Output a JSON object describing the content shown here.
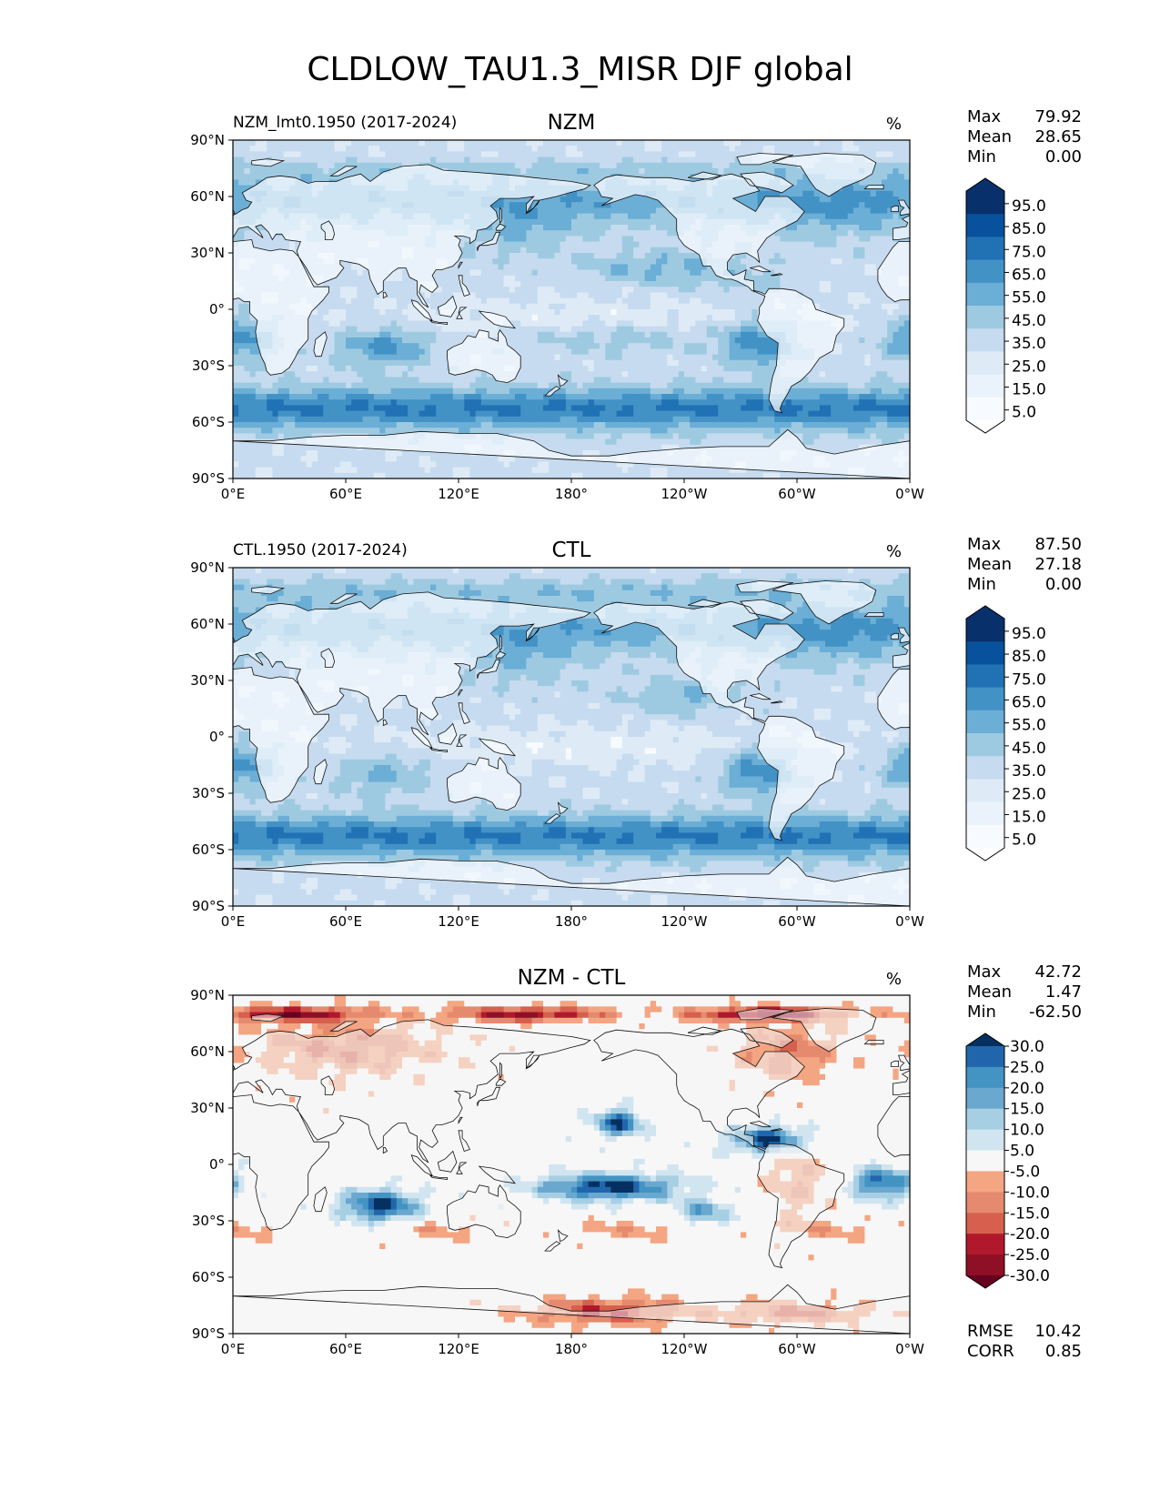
{
  "title": "CLDLOW_TAU1.3_MISR DJF global",
  "colors": {
    "seq_palette": [
      "#f7fbff",
      "#deebf7",
      "#c6dbef",
      "#9ecae1",
      "#6baed6",
      "#4292c6",
      "#2171b5",
      "#08519c",
      "#08306b"
    ],
    "div_palette": [
      "#67001f",
      "#b2182b",
      "#d6604d",
      "#f4a582",
      "#fddbc7",
      "#f7f7f7",
      "#d1e5f0",
      "#92c5de",
      "#4393c3",
      "#2166ac",
      "#053061"
    ],
    "coast": "#111111",
    "land_light": "#f5f5f5"
  },
  "panels": [
    {
      "id": "nzm",
      "left_label": "NZM_lmt0.1950 (2017-2024)",
      "center_label": "NZM",
      "units": "%",
      "stats": [
        {
          "label": "Max",
          "value": "79.92"
        },
        {
          "label": "Mean",
          "value": "28.65"
        },
        {
          "label": "Min",
          "value": "0.00"
        }
      ],
      "colorbar": {
        "type": "sequential",
        "ticks": [
          "95.0",
          "85.0",
          "75.0",
          "65.0",
          "55.0",
          "45.0",
          "35.0",
          "25.0",
          "15.0",
          "5.0"
        ]
      }
    },
    {
      "id": "ctl",
      "left_label": "CTL.1950 (2017-2024)",
      "center_label": "CTL",
      "units": "%",
      "stats": [
        {
          "label": "Max",
          "value": "87.50"
        },
        {
          "label": "Mean",
          "value": "27.18"
        },
        {
          "label": "Min",
          "value": "0.00"
        }
      ],
      "colorbar": {
        "type": "sequential",
        "ticks": [
          "95.0",
          "85.0",
          "75.0",
          "65.0",
          "55.0",
          "45.0",
          "35.0",
          "25.0",
          "15.0",
          "5.0"
        ]
      }
    },
    {
      "id": "diff",
      "left_label": "",
      "center_label": "NZM - CTL",
      "units": "%",
      "stats": [
        {
          "label": "Max",
          "value": "42.72"
        },
        {
          "label": "Mean",
          "value": "1.47"
        },
        {
          "label": "Min",
          "value": "-62.50"
        }
      ],
      "extra_stats": [
        {
          "label": "RMSE",
          "value": "10.42"
        },
        {
          "label": "CORR",
          "value": "0.85"
        }
      ],
      "colorbar": {
        "type": "diverging",
        "ticks": [
          "30.0",
          "25.0",
          "20.0",
          "15.0",
          "10.0",
          "5.0",
          "-5.0",
          "-10.0",
          "-15.0",
          "-20.0",
          "-25.0",
          "-30.0"
        ]
      }
    }
  ],
  "chart_data": {
    "type": "heatmap",
    "title": "CLDLOW_TAU1.3_MISR DJF global",
    "variable": "CLDLOW_TAU1.3_MISR",
    "season": "DJF",
    "region": "global",
    "units": "%",
    "xlim": [
      0,
      360
    ],
    "ylim": [
      -90,
      90
    ],
    "x_ticks": [
      "0°E",
      "60°E",
      "120°E",
      "180°",
      "120°W",
      "60°W",
      "0°W"
    ],
    "y_ticks": [
      "90°N",
      "60°N",
      "30°N",
      "0°",
      "30°S",
      "60°S",
      "90°S"
    ],
    "sequential_levels": [
      5,
      15,
      25,
      35,
      45,
      55,
      65,
      75,
      85,
      95
    ],
    "diverging_levels": [
      -30,
      -25,
      -20,
      -15,
      -10,
      -5,
      5,
      10,
      15,
      20,
      25,
      30
    ],
    "panels": [
      {
        "name": "NZM",
        "max": 79.92,
        "mean": 28.65,
        "min": 0.0
      },
      {
        "name": "CTL",
        "max": 87.5,
        "mean": 27.18,
        "min": 0.0
      },
      {
        "name": "NZM - CTL",
        "max": 42.72,
        "mean": 1.47,
        "min": -62.5,
        "rmse": 10.42,
        "corr": 0.85
      }
    ]
  }
}
